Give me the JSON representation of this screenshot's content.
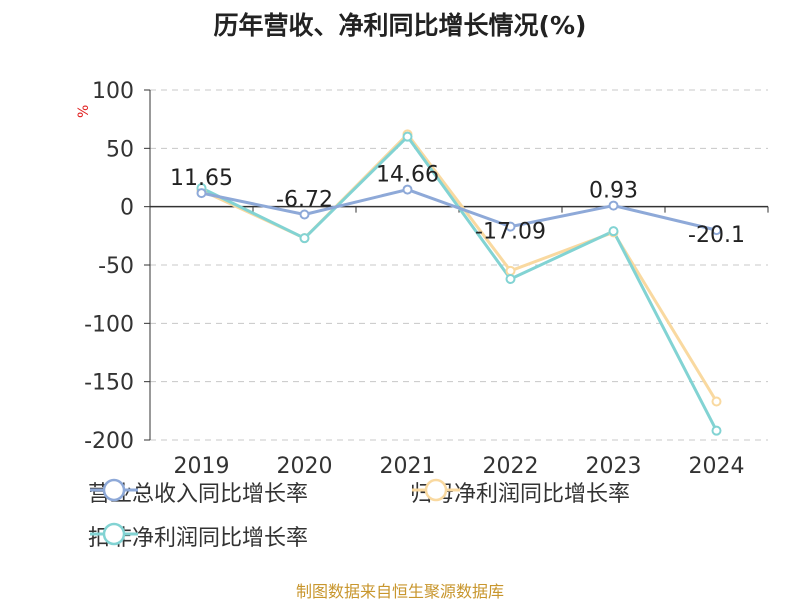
{
  "title": "历年营收、净利同比增长情况(%)",
  "unit": "%",
  "source": "制图数据来自恒生聚源数据库",
  "chart_data": {
    "type": "line",
    "categories": [
      "2019",
      "2020",
      "2021",
      "2022",
      "2023",
      "2024"
    ],
    "yticks": [
      100,
      50,
      0,
      -50,
      -100,
      -150,
      -200
    ],
    "ylim": [
      -200,
      100
    ],
    "grid": true,
    "legend_position": "bottom",
    "series": [
      {
        "name": "营业总收入同比增长率",
        "values": [
          11.65,
          -6.72,
          14.66,
          -17.09,
          0.93,
          -20.1
        ],
        "labels": [
          "11.65",
          "-6.72",
          "14.66",
          "-17.09",
          "0.93",
          "-20.1"
        ],
        "color": "#8ea9d8"
      },
      {
        "name": "归母净利润同比增长率",
        "values": [
          14,
          -27,
          62,
          -55,
          -22,
          -167
        ],
        "color": "#f9d9a0"
      },
      {
        "name": "扣非净利润同比增长率",
        "values": [
          16,
          -27,
          60,
          -62,
          -21,
          -192
        ],
        "color": "#82d3d3"
      }
    ]
  }
}
